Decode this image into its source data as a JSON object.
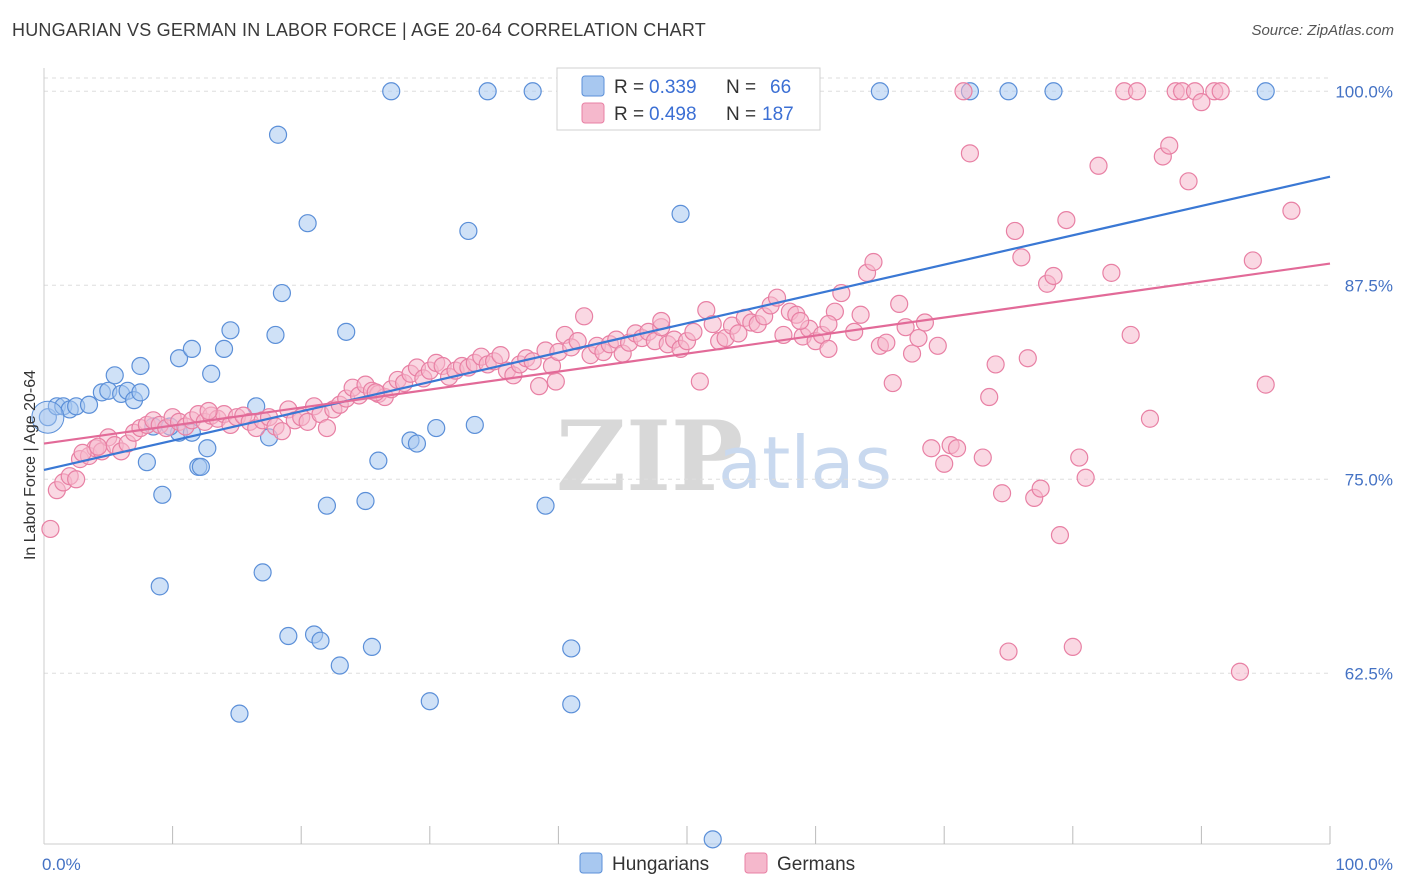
{
  "title": "HUNGARIAN VS GERMAN IN LABOR FORCE | AGE 20-64 CORRELATION CHART",
  "source": "Source: ZipAtlas.com",
  "watermark": {
    "zip": "ZIP",
    "atlas": "atlas"
  },
  "colors": {
    "hungarian_fill": "#a8c8f0",
    "hungarian_stroke": "#5b8fd8",
    "hungarian_line": "#3a78d4",
    "german_fill": "#f5b8cc",
    "german_stroke": "#e880a4",
    "german_line": "#e26a98",
    "tick_text": "#4472c4",
    "grid": "#dddddd"
  },
  "legend": {
    "rows": [
      {
        "r_label": "R =",
        "r_value": "0.339",
        "n_label": "N =",
        "n_value": "66"
      },
      {
        "r_label": "R =",
        "r_value": "0.498",
        "n_label": "N =",
        "n_value": "187"
      }
    ]
  },
  "chart_data": {
    "type": "scatter",
    "title": "HUNGARIAN VS GERMAN IN LABOR FORCE | AGE 20-64 CORRELATION CHART",
    "xlabel": "",
    "ylabel": "In Labor Force | Age 20-64",
    "xlim": [
      0,
      100
    ],
    "ylim": [
      51.5,
      101.5
    ],
    "x_tick_labels": [
      "0.0%",
      "100.0%"
    ],
    "y_ticks": [
      62.5,
      75.0,
      87.5,
      100.0
    ],
    "y_tick_labels": [
      "62.5%",
      "75.0%",
      "87.5%",
      "100.0%"
    ],
    "grid": true,
    "legend_position": "top-center",
    "series": [
      {
        "name": "Hungarians",
        "r": 0.339,
        "n": 66,
        "trend": {
          "x": [
            0,
            100
          ],
          "y": [
            75.6,
            94.5
          ]
        },
        "points": [
          [
            0.3,
            79.0
          ],
          [
            1.0,
            79.7
          ],
          [
            1.5,
            79.7
          ],
          [
            2.0,
            79.5
          ],
          [
            2.5,
            79.7
          ],
          [
            3.5,
            79.8
          ],
          [
            4.5,
            80.6
          ],
          [
            5.0,
            80.7
          ],
          [
            5.5,
            81.7
          ],
          [
            6.0,
            80.5
          ],
          [
            6.5,
            80.7
          ],
          [
            7.0,
            80.1
          ],
          [
            7.5,
            80.6
          ],
          [
            7.5,
            82.3
          ],
          [
            8.0,
            76.1
          ],
          [
            8.5,
            78.4
          ],
          [
            9.0,
            68.1
          ],
          [
            9.2,
            74.0
          ],
          [
            10.5,
            78.0
          ],
          [
            10.5,
            82.8
          ],
          [
            11.5,
            83.4
          ],
          [
            12.0,
            75.8
          ],
          [
            12.2,
            75.8
          ],
          [
            12.7,
            77.0
          ],
          [
            13.0,
            81.8
          ],
          [
            14.0,
            83.4
          ],
          [
            14.5,
            84.6
          ],
          [
            15.2,
            59.9
          ],
          [
            16.5,
            79.7
          ],
          [
            17.0,
            69.0
          ],
          [
            17.5,
            77.7
          ],
          [
            18.0,
            84.3
          ],
          [
            18.5,
            87.0
          ],
          [
            18.2,
            97.2
          ],
          [
            19.0,
            64.9
          ],
          [
            20.5,
            91.5
          ],
          [
            21.0,
            65.0
          ],
          [
            21.5,
            64.6
          ],
          [
            22.0,
            73.3
          ],
          [
            23.0,
            63.0
          ],
          [
            23.5,
            84.5
          ],
          [
            25.0,
            73.6
          ],
          [
            25.5,
            64.2
          ],
          [
            26.0,
            76.2
          ],
          [
            27.0,
            100.0
          ],
          [
            28.5,
            77.5
          ],
          [
            29.0,
            77.3
          ],
          [
            30.0,
            60.7
          ],
          [
            30.5,
            78.3
          ],
          [
            33.0,
            91.0
          ],
          [
            33.5,
            78.5
          ],
          [
            34.5,
            100.0
          ],
          [
            38.0,
            100.0
          ],
          [
            39.0,
            73.3
          ],
          [
            41.0,
            60.5
          ],
          [
            41.0,
            64.1
          ],
          [
            49.5,
            92.1
          ],
          [
            52.0,
            51.8
          ],
          [
            56.0,
            100.0
          ],
          [
            65.0,
            100.0
          ],
          [
            72.0,
            100.0
          ],
          [
            75.0,
            100.0
          ],
          [
            78.5,
            100.0
          ],
          [
            95.0,
            100.0
          ],
          [
            11.5,
            78.0
          ],
          [
            9.8,
            78.4
          ]
        ]
      },
      {
        "name": "Germans",
        "r": 0.498,
        "n": 187,
        "trend": {
          "x": [
            0,
            100
          ],
          "y": [
            77.3,
            88.9
          ]
        },
        "points": [
          [
            0.5,
            71.8
          ],
          [
            1.0,
            74.3
          ],
          [
            1.5,
            74.8
          ],
          [
            2.0,
            75.2
          ],
          [
            2.5,
            75.0
          ],
          [
            2.8,
            76.3
          ],
          [
            3.5,
            76.5
          ],
          [
            4.0,
            77.0
          ],
          [
            4.5,
            76.8
          ],
          [
            5.0,
            77.7
          ],
          [
            5.5,
            77.2
          ],
          [
            6.0,
            76.8
          ],
          [
            6.5,
            77.3
          ],
          [
            7.0,
            78.0
          ],
          [
            7.5,
            78.3
          ],
          [
            8.0,
            78.5
          ],
          [
            8.5,
            78.8
          ],
          [
            9.0,
            78.5
          ],
          [
            9.5,
            78.3
          ],
          [
            10.0,
            79.0
          ],
          [
            10.5,
            78.7
          ],
          [
            11.0,
            78.4
          ],
          [
            11.5,
            78.8
          ],
          [
            12.0,
            79.2
          ],
          [
            12.5,
            78.7
          ],
          [
            13.0,
            79.1
          ],
          [
            13.5,
            78.9
          ],
          [
            14.0,
            79.2
          ],
          [
            14.5,
            78.5
          ],
          [
            15.0,
            79.0
          ],
          [
            15.5,
            79.1
          ],
          [
            16.0,
            78.7
          ],
          [
            16.5,
            78.3
          ],
          [
            17.0,
            78.8
          ],
          [
            17.5,
            79.0
          ],
          [
            18.0,
            78.4
          ],
          [
            18.5,
            78.1
          ],
          [
            19.0,
            79.5
          ],
          [
            19.5,
            78.8
          ],
          [
            20.0,
            79.0
          ],
          [
            20.5,
            78.7
          ],
          [
            21.0,
            79.7
          ],
          [
            21.5,
            79.2
          ],
          [
            22.0,
            78.3
          ],
          [
            22.5,
            79.5
          ],
          [
            23.0,
            79.8
          ],
          [
            23.5,
            80.2
          ],
          [
            24.0,
            80.9
          ],
          [
            24.5,
            80.4
          ],
          [
            25.0,
            81.1
          ],
          [
            25.5,
            80.7
          ],
          [
            26.0,
            80.5
          ],
          [
            26.5,
            80.3
          ],
          [
            27.0,
            80.8
          ],
          [
            27.5,
            81.4
          ],
          [
            28.0,
            81.2
          ],
          [
            28.5,
            81.8
          ],
          [
            29.0,
            82.2
          ],
          [
            29.5,
            81.5
          ],
          [
            30.0,
            82.0
          ],
          [
            30.5,
            82.5
          ],
          [
            31.0,
            82.3
          ],
          [
            31.5,
            81.6
          ],
          [
            32.0,
            82.0
          ],
          [
            32.5,
            82.3
          ],
          [
            33.0,
            82.2
          ],
          [
            33.5,
            82.5
          ],
          [
            34.0,
            82.9
          ],
          [
            34.5,
            82.4
          ],
          [
            35.0,
            82.6
          ],
          [
            35.5,
            83.0
          ],
          [
            36.0,
            82.0
          ],
          [
            36.5,
            81.7
          ],
          [
            37.0,
            82.4
          ],
          [
            37.5,
            82.8
          ],
          [
            38.0,
            82.6
          ],
          [
            38.5,
            81.0
          ],
          [
            39.0,
            83.3
          ],
          [
            39.5,
            82.3
          ],
          [
            40.0,
            83.2
          ],
          [
            40.5,
            84.3
          ],
          [
            41.0,
            83.5
          ],
          [
            41.5,
            83.9
          ],
          [
            42.0,
            85.5
          ],
          [
            42.5,
            83.0
          ],
          [
            43.0,
            83.6
          ],
          [
            43.5,
            83.2
          ],
          [
            44.0,
            83.7
          ],
          [
            44.5,
            84.0
          ],
          [
            45.0,
            83.1
          ],
          [
            45.5,
            83.8
          ],
          [
            46.0,
            84.4
          ],
          [
            46.5,
            84.1
          ],
          [
            47.0,
            84.5
          ],
          [
            47.5,
            83.9
          ],
          [
            48.0,
            84.8
          ],
          [
            48.5,
            83.7
          ],
          [
            49.0,
            84.0
          ],
          [
            49.5,
            83.4
          ],
          [
            50.0,
            83.9
          ],
          [
            50.5,
            84.5
          ],
          [
            51.0,
            81.3
          ],
          [
            51.5,
            85.9
          ],
          [
            52.0,
            85.0
          ],
          [
            52.5,
            83.9
          ],
          [
            53.0,
            84.1
          ],
          [
            53.5,
            84.9
          ],
          [
            54.0,
            84.4
          ],
          [
            54.5,
            85.4
          ],
          [
            55.0,
            85.1
          ],
          [
            55.5,
            85.0
          ],
          [
            56.0,
            85.5
          ],
          [
            56.5,
            86.2
          ],
          [
            57.0,
            86.7
          ],
          [
            57.5,
            84.3
          ],
          [
            58.0,
            85.8
          ],
          [
            58.5,
            85.6
          ],
          [
            59.0,
            84.2
          ],
          [
            59.5,
            84.7
          ],
          [
            60.0,
            83.9
          ],
          [
            60.5,
            84.3
          ],
          [
            61.0,
            83.4
          ],
          [
            61.5,
            85.8
          ],
          [
            62.0,
            87.0
          ],
          [
            63.0,
            84.5
          ],
          [
            63.5,
            85.6
          ],
          [
            64.0,
            88.3
          ],
          [
            64.5,
            89.0
          ],
          [
            65.0,
            83.6
          ],
          [
            65.5,
            83.8
          ],
          [
            66.0,
            81.2
          ],
          [
            66.5,
            86.3
          ],
          [
            67.0,
            84.8
          ],
          [
            67.5,
            83.1
          ],
          [
            68.0,
            84.1
          ],
          [
            68.5,
            85.1
          ],
          [
            69.0,
            77.0
          ],
          [
            69.5,
            83.6
          ],
          [
            70.0,
            76.0
          ],
          [
            70.5,
            77.2
          ],
          [
            71.0,
            77.0
          ],
          [
            71.5,
            100.0
          ],
          [
            72.0,
            96.0
          ],
          [
            73.0,
            76.4
          ],
          [
            73.5,
            80.3
          ],
          [
            74.0,
            82.4
          ],
          [
            74.5,
            74.1
          ],
          [
            75.0,
            63.9
          ],
          [
            75.5,
            91.0
          ],
          [
            76.0,
            89.3
          ],
          [
            76.5,
            82.8
          ],
          [
            77.0,
            73.8
          ],
          [
            77.5,
            74.4
          ],
          [
            78.0,
            87.6
          ],
          [
            78.5,
            88.1
          ],
          [
            79.0,
            71.4
          ],
          [
            79.5,
            91.7
          ],
          [
            80.0,
            64.2
          ],
          [
            80.5,
            76.4
          ],
          [
            81.0,
            75.1
          ],
          [
            82.0,
            95.2
          ],
          [
            83.0,
            88.3
          ],
          [
            84.0,
            100.0
          ],
          [
            84.5,
            84.3
          ],
          [
            85.0,
            100.0
          ],
          [
            86.0,
            78.9
          ],
          [
            87.0,
            95.8
          ],
          [
            87.5,
            96.5
          ],
          [
            88.0,
            100.0
          ],
          [
            88.5,
            100.0
          ],
          [
            89.0,
            94.2
          ],
          [
            89.5,
            100.0
          ],
          [
            90.0,
            99.3
          ],
          [
            91.0,
            100.0
          ],
          [
            91.5,
            100.0
          ],
          [
            93.0,
            62.6
          ],
          [
            94.0,
            89.1
          ],
          [
            95.0,
            81.1
          ],
          [
            97.0,
            92.3
          ],
          [
            3.0,
            76.7
          ],
          [
            4.2,
            77.1
          ],
          [
            12.8,
            79.4
          ],
          [
            25.8,
            80.6
          ],
          [
            39.8,
            81.3
          ],
          [
            58.8,
            85.2
          ],
          [
            61.0,
            85.0
          ],
          [
            48.0,
            85.2
          ]
        ]
      }
    ]
  },
  "bottom_legend": [
    "Hungarians",
    "Germans"
  ]
}
